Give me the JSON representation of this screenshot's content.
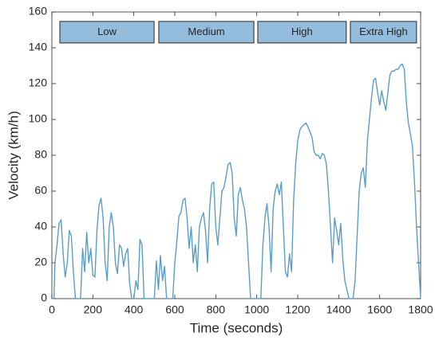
{
  "chart_data": {
    "type": "line",
    "x_label": "Time (seconds)",
    "y_label": "Velocity (km/h)",
    "xlim": [
      0,
      1800
    ],
    "xticks": [
      0,
      200,
      400,
      600,
      800,
      1000,
      1200,
      1400,
      1600,
      1800
    ],
    "ylim": [
      0,
      160
    ],
    "yticks": [
      0,
      20,
      40,
      60,
      80,
      100,
      120,
      140,
      160
    ],
    "phases": [
      {
        "label": "Low",
        "xlim": [
          39,
          499
        ],
        "ylim": [
          142.7,
          154.7
        ],
        "color": "#94bcdc"
      },
      {
        "label": "Medium",
        "xlim": [
          522,
          986
        ],
        "ylim": [
          142.7,
          154.7
        ],
        "color": "#94bcdc"
      },
      {
        "label": "High",
        "xlim": [
          1005,
          1437
        ],
        "ylim": [
          142.7,
          154.7
        ],
        "color": "#94bcdc"
      },
      {
        "label": "Extra High",
        "xlim": [
          1457,
          1780
        ],
        "ylim": [
          142.7,
          154.7
        ],
        "color": "#94bcdc"
      }
    ],
    "x": [
      0,
      10,
      15,
      25,
      35,
      45,
      55,
      65,
      75,
      85,
      95,
      105,
      115,
      125,
      140,
      150,
      160,
      170,
      180,
      190,
      200,
      210,
      220,
      230,
      240,
      250,
      260,
      270,
      280,
      290,
      300,
      310,
      320,
      330,
      340,
      350,
      360,
      370,
      380,
      390,
      400,
      410,
      420,
      430,
      440,
      450,
      460,
      500,
      510,
      520,
      530,
      540,
      550,
      560,
      570,
      590,
      600,
      610,
      620,
      630,
      640,
      650,
      660,
      670,
      680,
      690,
      700,
      710,
      720,
      730,
      740,
      750,
      760,
      770,
      780,
      790,
      800,
      810,
      820,
      830,
      840,
      850,
      860,
      870,
      880,
      890,
      900,
      910,
      920,
      930,
      940,
      950,
      960,
      970,
      990,
      1000,
      1010,
      1020,
      1030,
      1040,
      1050,
      1060,
      1070,
      1080,
      1090,
      1100,
      1110,
      1120,
      1130,
      1140,
      1150,
      1160,
      1170,
      1180,
      1190,
      1200,
      1210,
      1220,
      1230,
      1240,
      1250,
      1260,
      1270,
      1280,
      1290,
      1300,
      1310,
      1320,
      1330,
      1340,
      1350,
      1360,
      1370,
      1380,
      1390,
      1400,
      1410,
      1420,
      1430,
      1440,
      1450,
      1470,
      1480,
      1490,
      1500,
      1510,
      1520,
      1530,
      1540,
      1550,
      1560,
      1570,
      1580,
      1590,
      1600,
      1610,
      1620,
      1630,
      1640,
      1650,
      1660,
      1670,
      1680,
      1690,
      1700,
      1710,
      1720,
      1730,
      1740,
      1750,
      1760,
      1770,
      1780,
      1790,
      1800
    ],
    "series": [
      {
        "color": "#5b9dc9",
        "values": [
          0,
          0,
          20,
          30,
          42,
          44,
          25,
          12,
          20,
          38,
          35,
          15,
          0,
          0,
          0,
          28,
          15,
          37,
          20,
          28,
          13,
          12,
          38,
          52,
          56,
          45,
          20,
          10,
          40,
          48,
          40,
          20,
          14,
          30,
          28,
          18,
          25,
          28,
          8,
          0,
          0,
          10,
          5,
          33,
          30,
          0,
          0,
          0,
          21,
          5,
          24,
          10,
          18,
          0,
          0,
          0,
          20,
          32,
          46,
          48,
          55,
          56,
          45,
          28,
          40,
          20,
          30,
          15,
          40,
          45,
          48,
          38,
          20,
          50,
          64,
          65,
          40,
          30,
          45,
          60,
          62,
          68,
          75,
          76,
          70,
          45,
          35,
          58,
          62,
          55,
          50,
          40,
          20,
          0,
          0,
          0,
          0,
          0,
          30,
          45,
          53,
          40,
          15,
          50,
          60,
          64,
          58,
          65,
          40,
          15,
          12,
          25,
          15,
          55,
          75,
          88,
          94,
          96,
          97,
          98,
          96,
          93,
          90,
          82,
          80,
          80,
          78,
          81,
          80,
          75,
          60,
          40,
          20,
          45,
          38,
          30,
          42,
          22,
          10,
          5,
          0,
          0,
          10,
          35,
          60,
          70,
          73,
          62,
          88,
          100,
          112,
          122,
          123,
          115,
          108,
          116,
          110,
          105,
          115,
          125,
          127,
          127,
          128,
          128,
          130,
          131,
          128,
          110,
          98,
          92,
          85,
          65,
          40,
          20,
          0
        ]
      }
    ]
  }
}
